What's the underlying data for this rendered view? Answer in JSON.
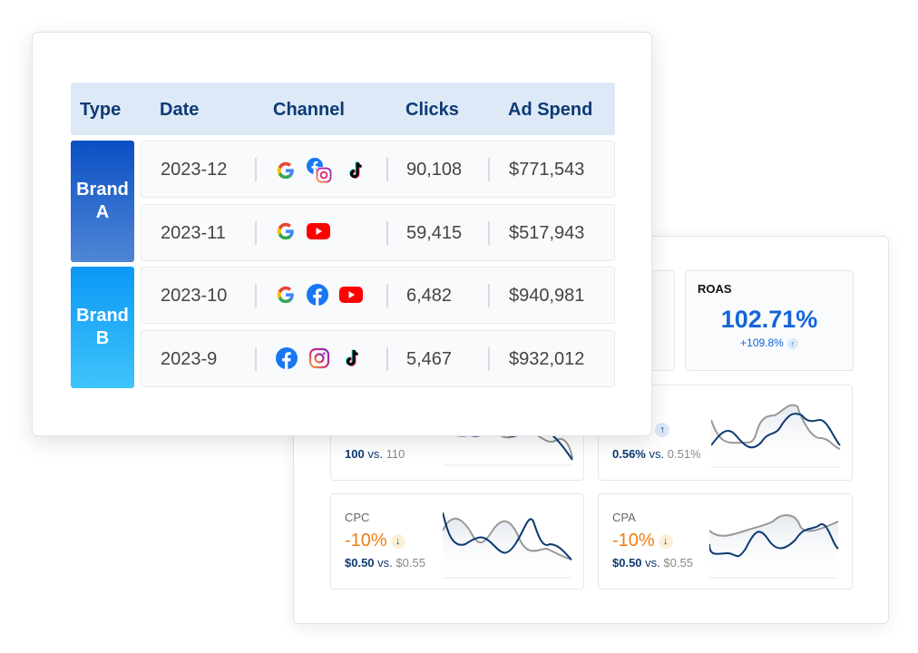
{
  "table": {
    "headers": [
      "Type",
      "Date",
      "Channel",
      "Clicks",
      "Ad Spend"
    ],
    "groups": [
      {
        "label_line1": "Brand",
        "label_line2": "A",
        "color_top": "#0a4fc4",
        "color_bottom": "#4f86d6"
      },
      {
        "label_line1": "Brand",
        "label_line2": "B",
        "color_top": "#0a98f5",
        "color_bottom": "#40c4fb"
      }
    ],
    "rows": [
      {
        "date": "2023-12",
        "channels": [
          "google-icon",
          "facebook-instagram-icon",
          "tiktok-icon"
        ],
        "clicks": "90,108",
        "spend": "$771,543"
      },
      {
        "date": "2023-11",
        "channels": [
          "google-icon",
          "youtube-icon"
        ],
        "clicks": "59,415",
        "spend": "$517,943"
      },
      {
        "date": "2023-10",
        "channels": [
          "google-icon",
          "facebook-icon",
          "youtube-icon"
        ],
        "clicks": "6,482",
        "spend": "$940,981"
      },
      {
        "date": "2023-9",
        "channels": [
          "facebook-icon",
          "instagram-icon",
          "tiktok-icon"
        ],
        "clicks": "5,467",
        "spend": "$932,012"
      }
    ]
  },
  "dashboard": {
    "roas": {
      "label": "ROAS",
      "value": "102.71%",
      "change": "+109.8%"
    },
    "metric_left": {
      "current": "100",
      "vs": "vs.",
      "previous": "110"
    },
    "metric_right": {
      "value_partial": "%",
      "current": "0.56%",
      "vs": "vs.",
      "previous": "0.51%"
    },
    "cpc": {
      "label": "CPC",
      "value": "-10%",
      "current": "$0.50",
      "vs": "vs.",
      "previous": "$0.55"
    },
    "cpa": {
      "label": "CPA",
      "value": "-10%",
      "current": "$0.50",
      "vs": "vs.",
      "previous": "$0.55"
    }
  },
  "colors": {
    "primary": "#0d3a73",
    "accent": "#1565d8",
    "negative": "#f07d12",
    "header_bg": "#dde9f7"
  }
}
